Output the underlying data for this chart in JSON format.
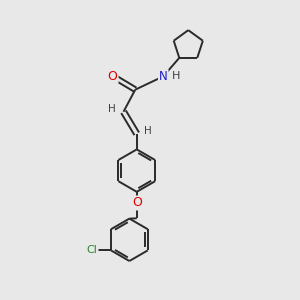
{
  "background_color": "#e8e8e8",
  "bond_color": "#2a2a2a",
  "atom_colors": {
    "O": "#e00000",
    "N": "#2020cc",
    "Cl": "#2a8a2a",
    "H": "#404040",
    "C": "#2a2a2a"
  },
  "figsize": [
    3.0,
    3.0
  ],
  "dpi": 100
}
